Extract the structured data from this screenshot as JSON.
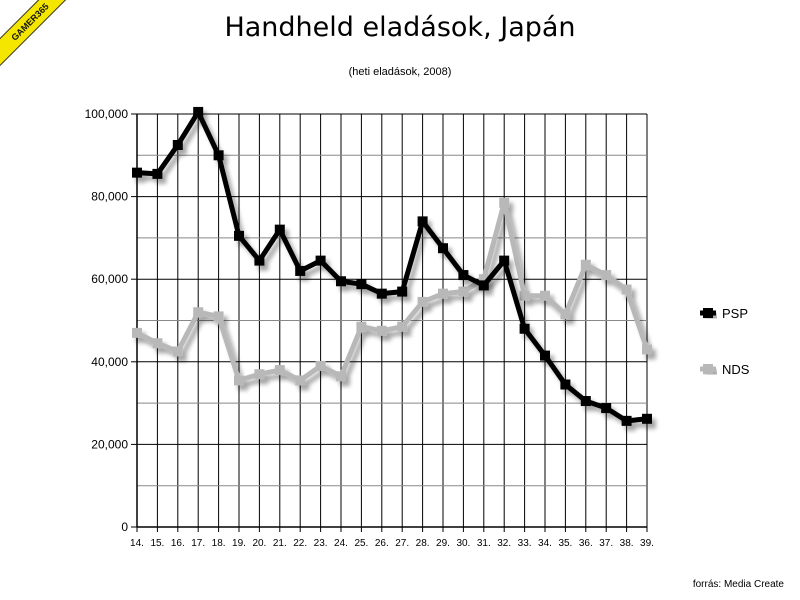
{
  "watermark": "GAMER365",
  "source": "forrás: Media Create",
  "chart_data": {
    "type": "line",
    "title": "Handheld eladások, Japán",
    "subtitle": "(heti eladások, 2008)",
    "categories": [
      "14.",
      "15.",
      "16.",
      "17.",
      "18.",
      "19.",
      "20.",
      "21.",
      "22.",
      "23.",
      "24.",
      "25.",
      "26.",
      "27.",
      "28.",
      "29.",
      "30.",
      "31.",
      "32.",
      "33.",
      "34.",
      "35.",
      "36.",
      "37.",
      "38.",
      "39."
    ],
    "y_ticks": [
      "0",
      "20,000",
      "40,000",
      "60,000",
      "80,000",
      "100,000"
    ],
    "ylim": [
      0,
      100000
    ],
    "grid": true,
    "legend_position": "right",
    "series": [
      {
        "name": "PSP",
        "color": "#000000",
        "values": [
          85800,
          85500,
          92500,
          100500,
          90000,
          70500,
          64500,
          72000,
          62000,
          64500,
          59500,
          58800,
          56500,
          57000,
          74000,
          67500,
          61000,
          58500,
          64500,
          48000,
          41500,
          34500,
          30500,
          28800,
          25700,
          26200
        ]
      },
      {
        "name": "NDS",
        "color": "#b8b8b8",
        "values": [
          47000,
          44500,
          42500,
          52000,
          51000,
          35500,
          37000,
          38000,
          35500,
          39000,
          36500,
          48500,
          47500,
          48500,
          54500,
          56500,
          57000,
          60000,
          78500,
          56000,
          56000,
          51500,
          63500,
          61000,
          57500,
          43000
        ]
      }
    ]
  }
}
